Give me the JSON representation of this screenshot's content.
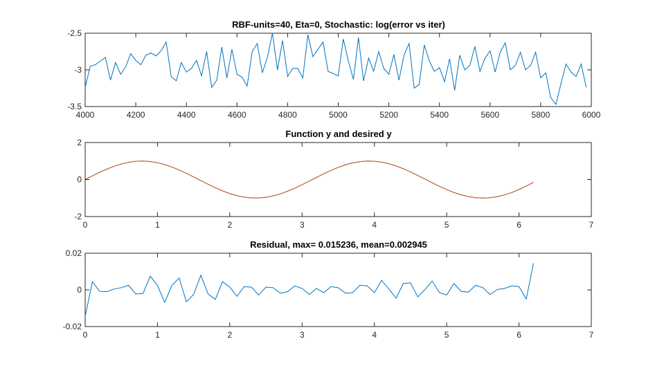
{
  "chart_data": [
    {
      "type": "line",
      "title": "RBF-units=40, Eta=0, Stochastic: log(error vs iter)",
      "xlabel": "",
      "ylabel": "",
      "xlim": [
        4000,
        6000
      ],
      "ylim": [
        -3.5,
        -2.5
      ],
      "xticks": [
        4000,
        4200,
        4400,
        4600,
        4800,
        5000,
        5200,
        5400,
        5600,
        5800,
        6000
      ],
      "yticks": [
        -3.5,
        -3,
        -2.5
      ],
      "xtick_labels": [
        "4000",
        "4200",
        "4400",
        "4600",
        "4800",
        "5000",
        "5200",
        "5400",
        "5600",
        "5800",
        "6000"
      ],
      "ytick_labels": [
        "-3.5",
        "-3",
        "-2.5"
      ],
      "series": [
        {
          "color": "#0072BD",
          "x": [
            4000,
            4020,
            4040,
            4060,
            4080,
            4100,
            4120,
            4140,
            4160,
            4180,
            4200,
            4220,
            4240,
            4260,
            4280,
            4300,
            4320,
            4340,
            4360,
            4380,
            4400,
            4420,
            4440,
            4460,
            4480,
            4500,
            4520,
            4540,
            4560,
            4580,
            4600,
            4620,
            4640,
            4660,
            4680,
            4700,
            4720,
            4740,
            4760,
            4780,
            4800,
            4820,
            4840,
            4860,
            4880,
            4900,
            4920,
            4940,
            4960,
            4980,
            5000,
            5020,
            5040,
            5060,
            5080,
            5100,
            5120,
            5140,
            5160,
            5180,
            5200,
            5220,
            5240,
            5260,
            5280,
            5300,
            5320,
            5340,
            5360,
            5380,
            5400,
            5420,
            5440,
            5460,
            5480,
            5500,
            5520,
            5540,
            5560,
            5580,
            5600,
            5620,
            5640,
            5660,
            5680,
            5700,
            5720,
            5740,
            5760,
            5780,
            5800,
            5820,
            5840,
            5860,
            5880,
            5900,
            5920,
            5940,
            5960,
            5980
          ],
          "y": [
            -3.24,
            -2.95,
            -2.93,
            -2.88,
            -2.83,
            -3.14,
            -2.9,
            -3.06,
            -2.96,
            -2.78,
            -2.87,
            -2.93,
            -2.8,
            -2.77,
            -2.81,
            -2.74,
            -2.62,
            -3.09,
            -3.15,
            -2.9,
            -3.03,
            -2.98,
            -2.87,
            -3.08,
            -2.75,
            -3.24,
            -3.14,
            -2.69,
            -3.11,
            -2.72,
            -3.06,
            -3.1,
            -3.22,
            -2.75,
            -2.64,
            -3.04,
            -2.83,
            -2.5,
            -3.0,
            -2.6,
            -3.09,
            -2.98,
            -2.98,
            -3.11,
            -2.52,
            -2.82,
            -2.72,
            -2.62,
            -3.02,
            -3.05,
            -3.08,
            -2.58,
            -2.88,
            -3.13,
            -2.56,
            -3.15,
            -2.84,
            -3.02,
            -2.75,
            -2.98,
            -3.06,
            -2.79,
            -3.14,
            -2.8,
            -2.64,
            -3.25,
            -3.2,
            -2.66,
            -2.88,
            -3.02,
            -2.97,
            -3.16,
            -2.85,
            -3.28,
            -2.8,
            -3.0,
            -2.94,
            -2.68,
            -3.02,
            -2.84,
            -2.74,
            -3.03,
            -2.76,
            -2.63,
            -3.0,
            -2.94,
            -2.76,
            -3.0,
            -2.94,
            -2.76,
            -3.11,
            -3.04,
            -3.38,
            -3.47,
            -3.19,
            -2.92,
            -3.03,
            -3.09,
            -2.92,
            -3.24
          ]
        }
      ]
    },
    {
      "type": "line",
      "title": "Function y and desired y",
      "xlabel": "",
      "ylabel": "",
      "xlim": [
        0,
        7
      ],
      "ylim": [
        -2,
        2
      ],
      "xticks": [
        0,
        1,
        2,
        3,
        4,
        5,
        6,
        7
      ],
      "yticks": [
        -2,
        0,
        2
      ],
      "xtick_labels": [
        "0",
        "1",
        "2",
        "3",
        "4",
        "5",
        "6",
        "7"
      ],
      "ytick_labels": [
        "-2",
        "0",
        "2"
      ],
      "series": [
        {
          "color": "#0072BD",
          "x": [
            0.0,
            0.1,
            0.2,
            0.3,
            0.4,
            0.5,
            0.6,
            0.7,
            0.8,
            0.9,
            1.0,
            1.1,
            1.2,
            1.3,
            1.4,
            1.5,
            1.6,
            1.7,
            1.8,
            1.9,
            2.0,
            2.1,
            2.2,
            2.3,
            2.4,
            2.5,
            2.6,
            2.7,
            2.8,
            2.9,
            3.0,
            3.1,
            3.2,
            3.3,
            3.4,
            3.5,
            3.6,
            3.7,
            3.8,
            3.9,
            4.0,
            4.1,
            4.2,
            4.3,
            4.4,
            4.5,
            4.6,
            4.7,
            4.8,
            4.9,
            5.0,
            5.1,
            5.2,
            5.3,
            5.4,
            5.5,
            5.6,
            5.7,
            5.8,
            5.9,
            6.0,
            6.1,
            6.2
          ],
          "y": [
            0.0,
            0.199,
            0.389,
            0.565,
            0.717,
            0.841,
            0.932,
            0.985,
            1.0,
            0.974,
            0.909,
            0.808,
            0.675,
            0.516,
            0.335,
            0.141,
            -0.058,
            -0.256,
            -0.443,
            -0.612,
            -0.757,
            -0.872,
            -0.952,
            -0.994,
            -0.996,
            -0.959,
            -0.883,
            -0.773,
            -0.631,
            -0.465,
            -0.279,
            -0.083,
            0.117,
            0.312,
            0.494,
            0.657,
            0.794,
            0.899,
            0.968,
            0.999,
            0.989,
            0.941,
            0.855,
            0.734,
            0.585,
            0.412,
            0.223,
            0.025,
            -0.174,
            -0.366,
            -0.544,
            -0.7,
            -0.827,
            -0.922,
            -0.98,
            -1.0,
            -0.98,
            -0.922,
            -0.829,
            -0.703,
            -0.537,
            -0.351,
            -0.158
          ]
        },
        {
          "color": "#D95319",
          "x": [
            0.0,
            0.1,
            0.2,
            0.3,
            0.4,
            0.5,
            0.6,
            0.7,
            0.8,
            0.9,
            1.0,
            1.1,
            1.2,
            1.3,
            1.4,
            1.5,
            1.6,
            1.7,
            1.8,
            1.9,
            2.0,
            2.1,
            2.2,
            2.3,
            2.4,
            2.5,
            2.6,
            2.7,
            2.8,
            2.9,
            3.0,
            3.1,
            3.2,
            3.3,
            3.4,
            3.5,
            3.6,
            3.7,
            3.8,
            3.9,
            4.0,
            4.1,
            4.2,
            4.3,
            4.4,
            4.5,
            4.6,
            4.7,
            4.8,
            4.9,
            5.0,
            5.1,
            5.2,
            5.3,
            5.4,
            5.5,
            5.6,
            5.7,
            5.8,
            5.9,
            6.0,
            6.1,
            6.2
          ],
          "y": [
            0.0,
            0.199,
            0.389,
            0.565,
            0.717,
            0.841,
            0.932,
            0.985,
            1.0,
            0.974,
            0.909,
            0.808,
            0.675,
            0.516,
            0.335,
            0.141,
            -0.058,
            -0.256,
            -0.443,
            -0.612,
            -0.757,
            -0.872,
            -0.952,
            -0.994,
            -0.996,
            -0.959,
            -0.883,
            -0.773,
            -0.631,
            -0.465,
            -0.279,
            -0.083,
            0.117,
            0.312,
            0.494,
            0.657,
            0.794,
            0.899,
            0.968,
            0.999,
            0.989,
            0.941,
            0.855,
            0.734,
            0.585,
            0.412,
            0.223,
            0.025,
            -0.174,
            -0.366,
            -0.544,
            -0.7,
            -0.827,
            -0.922,
            -0.98,
            -1.0,
            -0.98,
            -0.922,
            -0.829,
            -0.703,
            -0.537,
            -0.351,
            -0.158
          ]
        }
      ]
    },
    {
      "type": "line",
      "title": "Residual, max= 0.015236, mean=0.002945",
      "xlabel": "",
      "ylabel": "",
      "xlim": [
        0,
        7
      ],
      "ylim": [
        -0.02,
        0.02
      ],
      "xticks": [
        0,
        1,
        2,
        3,
        4,
        5,
        6,
        7
      ],
      "yticks": [
        -0.02,
        0,
        0.02
      ],
      "xtick_labels": [
        "0",
        "1",
        "2",
        "3",
        "4",
        "5",
        "6",
        "7"
      ],
      "ytick_labels": [
        "-0.02",
        "0",
        "0.02"
      ],
      "series": [
        {
          "color": "#0072BD",
          "x": [
            0.0,
            0.1,
            0.2,
            0.3,
            0.4,
            0.5,
            0.6,
            0.7,
            0.8,
            0.9,
            1.0,
            1.1,
            1.2,
            1.3,
            1.4,
            1.5,
            1.6,
            1.7,
            1.8,
            1.9,
            2.0,
            2.1,
            2.2,
            2.3,
            2.4,
            2.5,
            2.6,
            2.7,
            2.8,
            2.9,
            3.0,
            3.1,
            3.2,
            3.3,
            3.4,
            3.5,
            3.6,
            3.7,
            3.8,
            3.9,
            4.0,
            4.1,
            4.2,
            4.3,
            4.4,
            4.5,
            4.6,
            4.7,
            4.8,
            4.9,
            5.0,
            5.1,
            5.2,
            5.3,
            5.4,
            5.5,
            5.6,
            5.7,
            5.8,
            5.9,
            6.0,
            6.1,
            6.2
          ],
          "y": [
            -0.0145,
            0.0045,
            -0.0008,
            -0.001,
            0.0005,
            0.0012,
            0.0025,
            -0.0022,
            -0.002,
            0.0075,
            0.0025,
            -0.0068,
            0.0025,
            0.0065,
            -0.0065,
            -0.0025,
            0.008,
            -0.0022,
            -0.0052,
            0.0045,
            0.0015,
            -0.0035,
            0.0018,
            0.0015,
            -0.0028,
            0.0015,
            0.0012,
            -0.0018,
            -0.001,
            0.0022,
            0.0008,
            -0.0025,
            0.0008,
            -0.0015,
            0.0018,
            0.0012,
            -0.0018,
            -0.0015,
            0.0025,
            0.0022,
            -0.0015,
            0.0052,
            0.0005,
            -0.0045,
            0.0035,
            0.0038,
            -0.0038,
            0.0002,
            0.0048,
            -0.0015,
            -0.0028,
            0.0035,
            -0.0008,
            -0.0012,
            0.0025,
            0.0012,
            -0.0025,
            0.0002,
            0.0008,
            0.0022,
            0.0018,
            -0.005,
            0.0145
          ]
        }
      ]
    }
  ]
}
